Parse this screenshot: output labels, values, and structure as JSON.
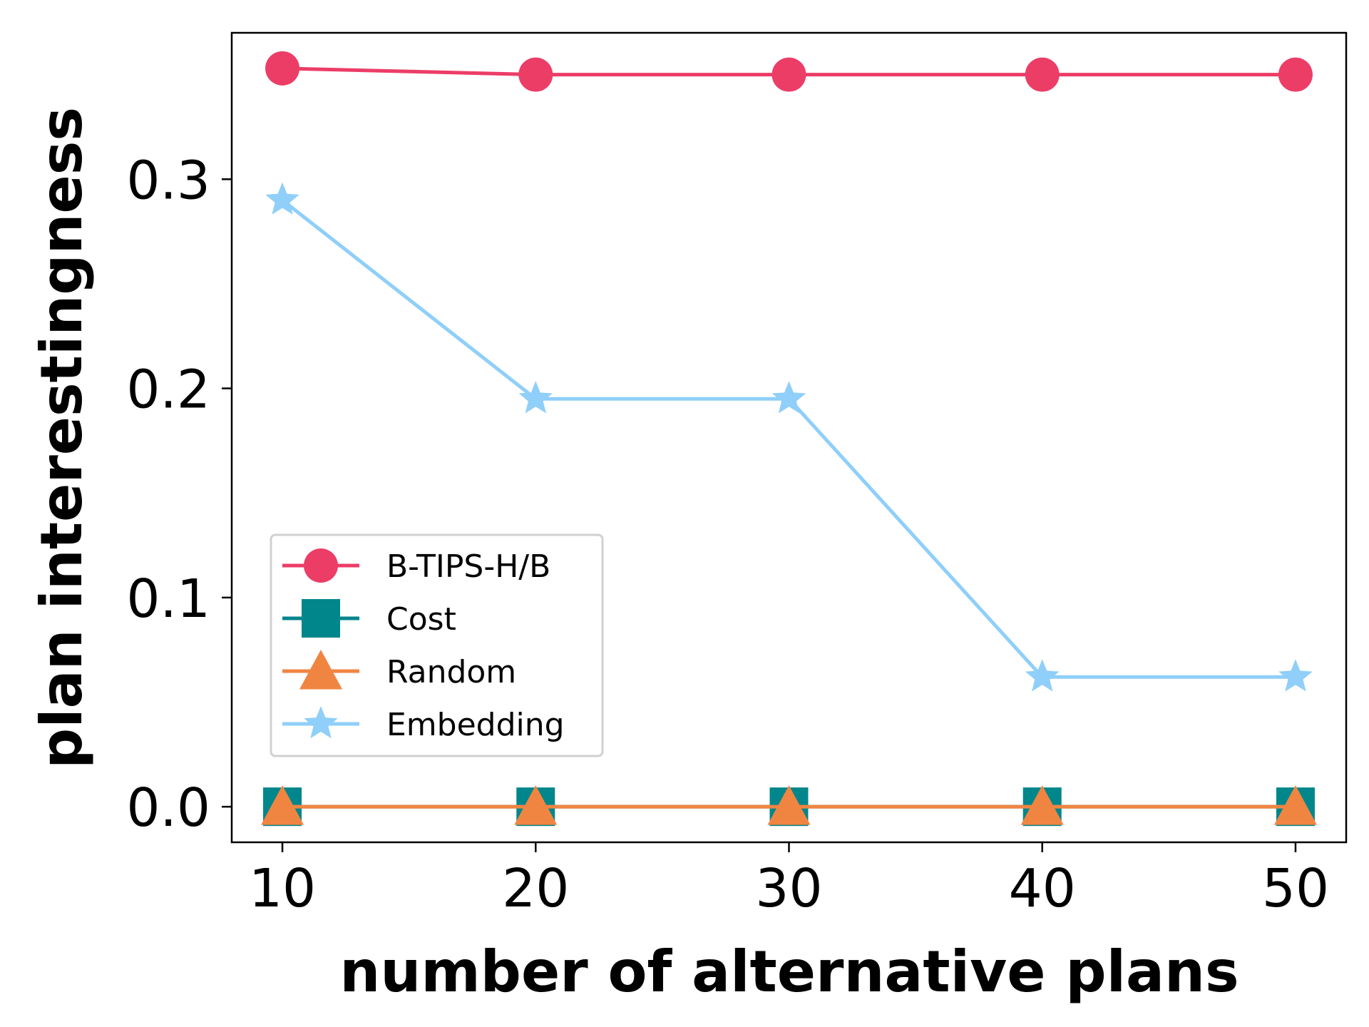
{
  "chart_data": {
    "type": "line",
    "xlabel": "number of alternative plans",
    "ylabel": "plan interestingness",
    "x": [
      10,
      20,
      30,
      40,
      50
    ],
    "xlim": [
      8,
      52
    ],
    "ylim": [
      -0.017,
      0.37
    ],
    "xticks": [
      10,
      20,
      30,
      40,
      50
    ],
    "yticks": [
      0.0,
      0.1,
      0.2,
      0.3
    ],
    "ytick_labels": [
      "0.0",
      "0.1",
      "0.2",
      "0.3"
    ],
    "xtick_labels": [
      "10",
      "20",
      "30",
      "40",
      "50"
    ],
    "grid": false,
    "legend_position": "center-left",
    "series": [
      {
        "name": "B-TIPS-H/B",
        "values": [
          0.353,
          0.35,
          0.35,
          0.35,
          0.35
        ],
        "color": "#ec3d67",
        "marker": "circle"
      },
      {
        "name": "Cost",
        "values": [
          0.0,
          0.0,
          0.0,
          0.0,
          0.0
        ],
        "color": "#00868b",
        "marker": "square"
      },
      {
        "name": "Random",
        "values": [
          0.0,
          0.0,
          0.0,
          0.0,
          0.0
        ],
        "color": "#f08542",
        "marker": "triangle"
      },
      {
        "name": "Embedding",
        "values": [
          0.29,
          0.195,
          0.195,
          0.062,
          0.062
        ],
        "color": "#8fcff9",
        "marker": "star"
      }
    ]
  }
}
